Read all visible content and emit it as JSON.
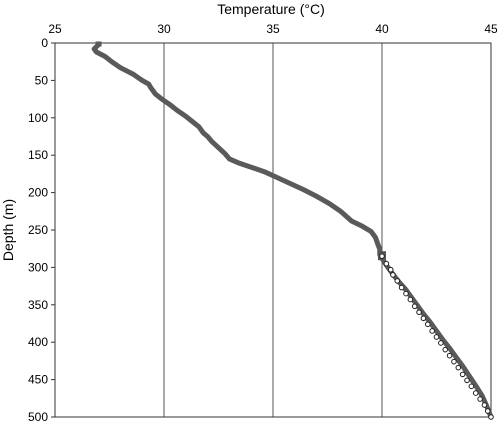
{
  "chart_data": {
    "type": "line",
    "title": "",
    "xlabel": "Temperature (°C)",
    "ylabel": "Depth (m)",
    "xlim": [
      25,
      45
    ],
    "ylim": [
      0,
      500
    ],
    "y_reversed": true,
    "x_axis_position": "top",
    "grid": "vertical",
    "x_ticks": [
      "25",
      "30",
      "35",
      "40",
      "45"
    ],
    "y_ticks": [
      "0",
      "50",
      "100",
      "150",
      "200",
      "250",
      "300",
      "350",
      "400",
      "450",
      "500"
    ],
    "series": [
      {
        "style": "thick-line",
        "color": "#5a5a5a",
        "points": [
          [
            27.0,
            2
          ],
          [
            26.9,
            5
          ],
          [
            26.8,
            8
          ],
          [
            26.9,
            12
          ],
          [
            27.3,
            18
          ],
          [
            27.6,
            25
          ],
          [
            28.0,
            33
          ],
          [
            28.6,
            42
          ],
          [
            29.0,
            50
          ],
          [
            29.3,
            55
          ],
          [
            29.4,
            60
          ],
          [
            29.6,
            68
          ],
          [
            29.9,
            75
          ],
          [
            30.3,
            83
          ],
          [
            30.6,
            90
          ],
          [
            31.0,
            98
          ],
          [
            31.3,
            105
          ],
          [
            31.6,
            112
          ],
          [
            31.8,
            120
          ],
          [
            32.0,
            125
          ],
          [
            32.2,
            132
          ],
          [
            32.5,
            140
          ],
          [
            32.8,
            148
          ],
          [
            33.0,
            155
          ],
          [
            33.4,
            160
          ],
          [
            34.0,
            166
          ],
          [
            34.6,
            172
          ],
          [
            35.2,
            180
          ],
          [
            35.8,
            188
          ],
          [
            36.4,
            196
          ],
          [
            37.0,
            205
          ],
          [
            37.6,
            215
          ],
          [
            38.1,
            225
          ],
          [
            38.6,
            238
          ],
          [
            39.1,
            245
          ],
          [
            39.5,
            252
          ],
          [
            39.7,
            260
          ],
          [
            39.8,
            268
          ],
          [
            39.9,
            276
          ],
          [
            39.9,
            283
          ],
          [
            40.0,
            288
          ],
          [
            40.2,
            297
          ],
          [
            40.4,
            305
          ],
          [
            40.6,
            313
          ],
          [
            40.8,
            320
          ],
          [
            41.1,
            330
          ],
          [
            41.3,
            338
          ],
          [
            41.6,
            350
          ],
          [
            41.9,
            362
          ],
          [
            42.2,
            373
          ],
          [
            42.5,
            385
          ],
          [
            42.8,
            397
          ],
          [
            43.1,
            408
          ],
          [
            43.4,
            420
          ],
          [
            43.7,
            432
          ],
          [
            44.0,
            445
          ],
          [
            44.3,
            458
          ],
          [
            44.6,
            472
          ],
          [
            44.8,
            485
          ],
          [
            45.0,
            500
          ]
        ]
      },
      {
        "style": "open-circles",
        "color": "#222222",
        "points": [
          [
            40.0,
            285
          ],
          [
            40.2,
            295
          ],
          [
            40.4,
            303
          ],
          [
            40.5,
            310
          ],
          [
            40.7,
            318
          ],
          [
            40.9,
            327
          ],
          [
            41.1,
            335
          ],
          [
            41.3,
            343
          ],
          [
            41.5,
            352
          ],
          [
            41.7,
            360
          ],
          [
            41.9,
            368
          ],
          [
            42.1,
            376
          ],
          [
            42.3,
            385
          ],
          [
            42.5,
            393
          ],
          [
            42.7,
            401
          ],
          [
            42.9,
            410
          ],
          [
            43.1,
            418
          ],
          [
            43.3,
            426
          ],
          [
            43.5,
            434
          ],
          [
            43.7,
            443
          ],
          [
            43.9,
            451
          ],
          [
            44.1,
            459
          ],
          [
            44.3,
            468
          ],
          [
            44.5,
            476
          ],
          [
            44.7,
            484
          ],
          [
            44.85,
            492
          ],
          [
            45.0,
            500
          ]
        ]
      }
    ]
  }
}
